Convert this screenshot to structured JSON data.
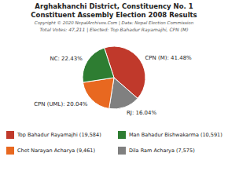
{
  "chart_data": {
    "type": "pie",
    "title": "Arghakhanchi District, Constituency No. 1",
    "subtitle": "Constituent Assembly Election 2008 Results",
    "annotations": [
      "Copyright © 2020 NepalArchives.Com | Data: Nepal Election Commission",
      "Total Votes: 47,211 | Elected: Top Bahadur Rayamajhi, CPN (M)"
    ],
    "values": [
      41.48,
      16.04,
      20.04,
      22.43
    ],
    "value_labels": [
      "CPN (M): 41.48%",
      "RJ: 16.04%",
      "CPN (UML): 20.04%",
      "NC: 22.43%"
    ],
    "colors": [
      "#c0392b",
      "#808080",
      "#e86820",
      "#2e7d32"
    ],
    "data_labels": true,
    "legend": "bottom",
    "legend_entries": [
      {
        "label": "Top Bahadur Rayamajhi (19,584)",
        "color": "#c0392b"
      },
      {
        "label": "Man Bahadur Bishwakarma (10,591)",
        "color": "#2e7d32"
      },
      {
        "label": "Chet Narayan Acharya (9,461)",
        "color": "#e86820"
      },
      {
        "label": "Dila Ram Acharya (7,575)",
        "color": "#808080"
      }
    ]
  }
}
